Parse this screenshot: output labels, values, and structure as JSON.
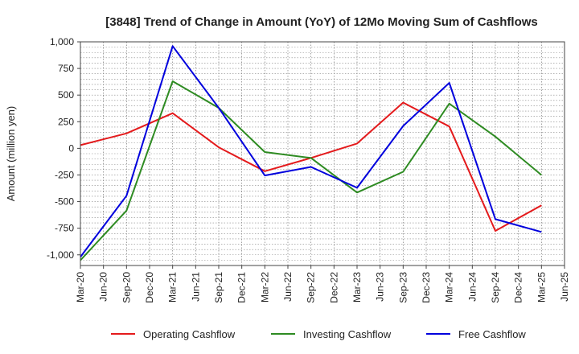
{
  "chart_data": {
    "type": "line",
    "title": "[3848]  Trend of Change in Amount (YoY) of 12Mo Moving Sum of Cashflows",
    "xlabel": "",
    "ylabel": "Amount (million yen)",
    "ylim": [
      -1100,
      1000
    ],
    "y_ticks": [
      1000,
      750,
      500,
      250,
      0,
      -250,
      -500,
      -750,
      -1000
    ],
    "y_tick_labels": [
      "1,000",
      "750",
      "500",
      "250",
      "0",
      "-250",
      "-500",
      "-750",
      "-1,000"
    ],
    "categories": [
      "Mar-20",
      "Jun-20",
      "Sep-20",
      "Dec-20",
      "Mar-21",
      "Jun-21",
      "Sep-21",
      "Dec-21",
      "Mar-22",
      "Jun-22",
      "Sep-22",
      "Dec-22",
      "Mar-23",
      "Jun-23",
      "Sep-23",
      "Dec-23",
      "Mar-24",
      "Jun-24",
      "Sep-24",
      "Dec-24",
      "Mar-25",
      "Jun-25"
    ],
    "legend_position": "bottom",
    "grid": true,
    "series": [
      {
        "name": "Operating Cashflow",
        "color": "#e41a1c",
        "points": [
          [
            0,
            30
          ],
          [
            2,
            140
          ],
          [
            4,
            330
          ],
          [
            6,
            10
          ],
          [
            8,
            -215
          ],
          [
            10,
            -90
          ],
          [
            12,
            45
          ],
          [
            14,
            430
          ],
          [
            16,
            205
          ],
          [
            18,
            -775
          ],
          [
            20,
            -535
          ]
        ]
      },
      {
        "name": "Investing Cashflow",
        "color": "#2e8b22",
        "points": [
          [
            0,
            -1050
          ],
          [
            2,
            -585
          ],
          [
            4,
            630
          ],
          [
            6,
            380
          ],
          [
            8,
            -35
          ],
          [
            10,
            -90
          ],
          [
            12,
            -415
          ],
          [
            14,
            -220
          ],
          [
            16,
            420
          ],
          [
            18,
            110
          ],
          [
            20,
            -250
          ]
        ]
      },
      {
        "name": "Free Cashflow",
        "color": "#0000dd",
        "points": [
          [
            0,
            -1020
          ],
          [
            2,
            -445
          ],
          [
            4,
            960
          ],
          [
            6,
            380
          ],
          [
            8,
            -255
          ],
          [
            10,
            -175
          ],
          [
            12,
            -370
          ],
          [
            14,
            210
          ],
          [
            16,
            615
          ],
          [
            18,
            -665
          ],
          [
            20,
            -785
          ]
        ]
      }
    ]
  }
}
